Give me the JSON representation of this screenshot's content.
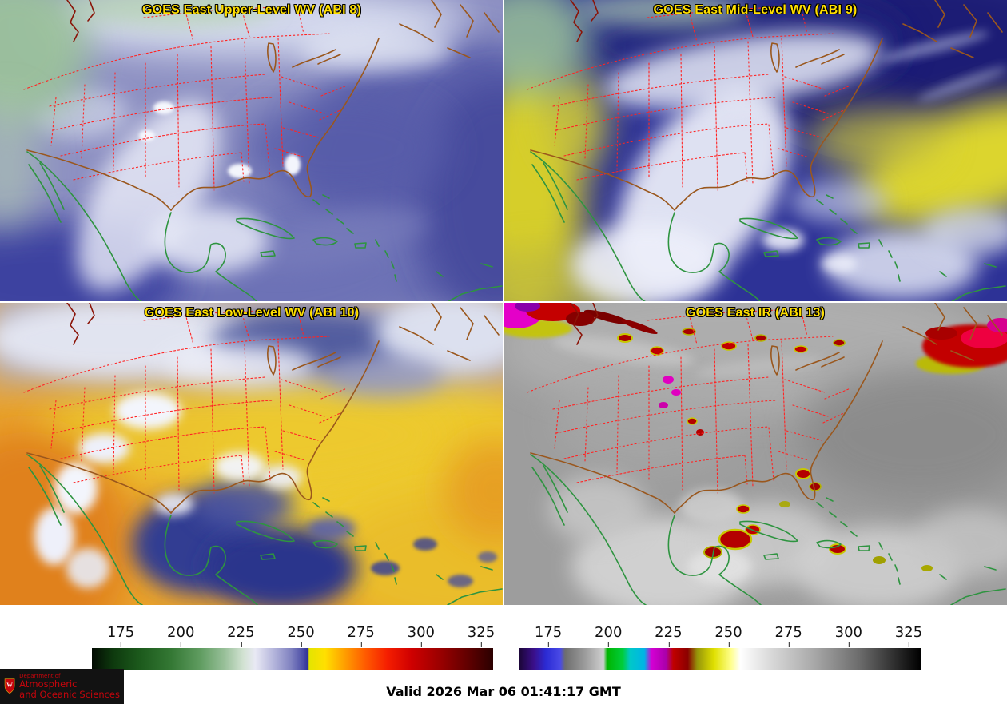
{
  "panels": [
    {
      "id": "upper-wv",
      "title": "GOES East Upper-Level WV (ABI 8)"
    },
    {
      "id": "mid-wv",
      "title": "GOES East Mid-Level WV (ABI 9)"
    },
    {
      "id": "low-wv",
      "title": "GOES East Low-Level WV (ABI 10)"
    },
    {
      "id": "ir",
      "title": "GOES East IR (ABI 13)"
    }
  ],
  "colorbars": [
    {
      "name": "wv-temperature-scale",
      "ticks": [
        175,
        200,
        225,
        250,
        275,
        300,
        325
      ],
      "domain": [
        163,
        330
      ],
      "stops": [
        [
          163,
          "#030b03"
        ],
        [
          172,
          "#0e3a0e"
        ],
        [
          183,
          "#1c5a1c"
        ],
        [
          196,
          "#347834"
        ],
        [
          208,
          "#5f9c60"
        ],
        [
          218,
          "#97bf98"
        ],
        [
          226,
          "#d2e2d2"
        ],
        [
          231,
          "#e9e9f4"
        ],
        [
          238,
          "#b9bade"
        ],
        [
          246,
          "#7f81c0"
        ],
        [
          251,
          "#4a4ca6"
        ],
        [
          253,
          "#2e2f96"
        ],
        [
          253.4,
          "#e4e400"
        ],
        [
          260,
          "#ffe000"
        ],
        [
          268,
          "#ffa000"
        ],
        [
          277,
          "#ff5a00"
        ],
        [
          286,
          "#f51e00"
        ],
        [
          296,
          "#cf0000"
        ],
        [
          308,
          "#9a0000"
        ],
        [
          320,
          "#5e0000"
        ],
        [
          330,
          "#2a0000"
        ]
      ]
    },
    {
      "name": "ir-temperature-scale",
      "ticks": [
        175,
        200,
        225,
        250,
        275,
        300,
        325
      ],
      "domain": [
        163,
        330
      ],
      "stops": [
        [
          163,
          "#1c0638"
        ],
        [
          169,
          "#3a0f8a"
        ],
        [
          174,
          "#2b2bd4"
        ],
        [
          180,
          "#4a4ae6"
        ],
        [
          182,
          "#6e6e6e"
        ],
        [
          190,
          "#9a9a9a"
        ],
        [
          198,
          "#cfcfcf"
        ],
        [
          199.5,
          "#00b400"
        ],
        [
          206,
          "#00cd3c"
        ],
        [
          209,
          "#00c8c8"
        ],
        [
          215,
          "#00b4e6"
        ],
        [
          218,
          "#d400d4"
        ],
        [
          224,
          "#aa00aa"
        ],
        [
          227,
          "#c00000"
        ],
        [
          233,
          "#8a0000"
        ],
        [
          237,
          "#96960a"
        ],
        [
          244,
          "#e0e000"
        ],
        [
          251,
          "#ffff8a"
        ],
        [
          255,
          "#ffffff"
        ],
        [
          268,
          "#d8d8d8"
        ],
        [
          285,
          "#aaaaaa"
        ],
        [
          305,
          "#6a6a6a"
        ],
        [
          330,
          "#000000"
        ]
      ]
    }
  ],
  "footer": {
    "valid_time": "Valid 2026 Mar 06 01:41:17 GMT"
  },
  "logo": {
    "dept_line": "Department of",
    "name_line1": "Atmospheric",
    "name_line2": "and Oceanic Sciences",
    "crest_letter": "W"
  },
  "colors": {
    "panel_title": "#ffdf00",
    "logo_red": "#c5050c",
    "state_lines": "#ff2424",
    "us_coast": "#9a571d",
    "intl_coast": "#2e9440"
  }
}
